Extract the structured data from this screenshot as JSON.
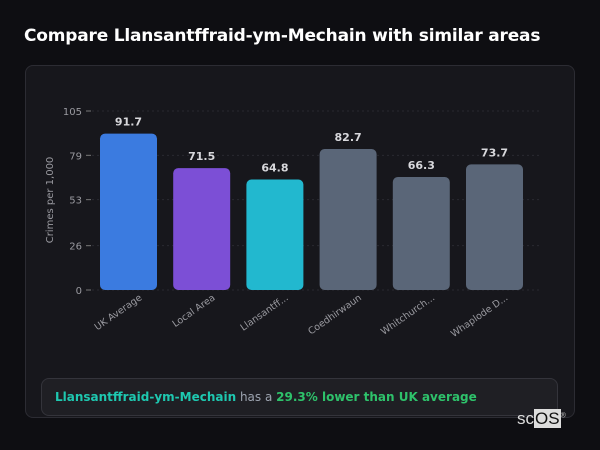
{
  "title": "Compare Llansantffraid-ym-Mechain with similar areas",
  "chart_data": {
    "type": "bar",
    "categories": [
      "UK Average",
      "Local Area",
      "Llansantff...",
      "Coedhirwaun",
      "Whitchurch...",
      "Whaplode D..."
    ],
    "values": [
      91.7,
      71.5,
      64.8,
      82.7,
      66.3,
      73.7
    ],
    "colors": [
      "#3b7be0",
      "#7c4fd6",
      "#22b8cf",
      "#5a6678",
      "#5a6678",
      "#5a6678"
    ],
    "ylabel": "Crimes per 1,000",
    "yticks": [
      0,
      26,
      53,
      79,
      105
    ],
    "ylim": [
      0,
      105
    ],
    "grid": true
  },
  "summary": {
    "area": "Llansantffraid-ym-Mechain",
    "middle": " has a ",
    "comparison": "29.3% lower than UK average"
  },
  "logo": {
    "text_a": "sc",
    "text_b": "OS",
    "mark": "®"
  }
}
